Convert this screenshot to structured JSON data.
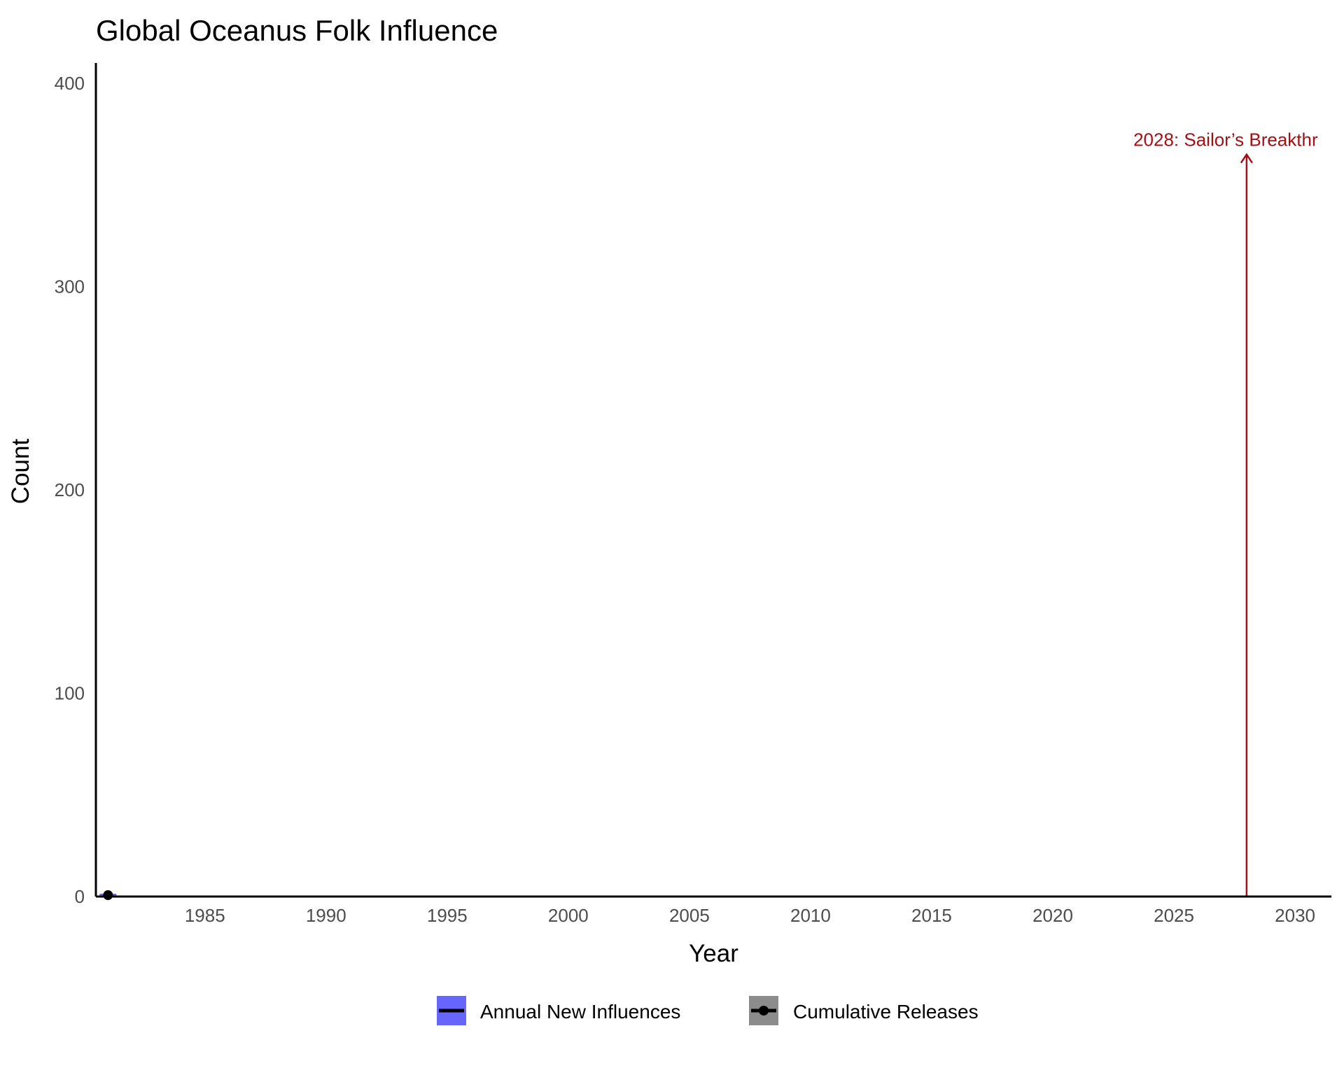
{
  "chart_data": {
    "type": "line",
    "title": "Global Oceanus Folk Influence",
    "xlabel": "Year",
    "ylabel": "Count",
    "xlim": [
      1980.5,
      2031.5
    ],
    "ylim": [
      0,
      410
    ],
    "x_ticks": [
      "1985",
      "1990",
      "1995",
      "2000",
      "2005",
      "2010",
      "2015",
      "2020",
      "2025",
      "2030"
    ],
    "y_ticks": [
      "0",
      "100",
      "200",
      "300",
      "400"
    ],
    "grid": false,
    "legend_position": "bottom",
    "series": [
      {
        "name": "Annual New Influences",
        "color": "#6666ff",
        "x": [
          1981
        ],
        "y": [
          0
        ]
      },
      {
        "name": "Cumulative Releases",
        "color": "#000000",
        "x": [
          1981
        ],
        "y": [
          0
        ]
      }
    ],
    "annotation": {
      "label": "2028: Sailor’s Breakthr",
      "x": 2028,
      "y": 365,
      "color": "#a50f15"
    }
  }
}
